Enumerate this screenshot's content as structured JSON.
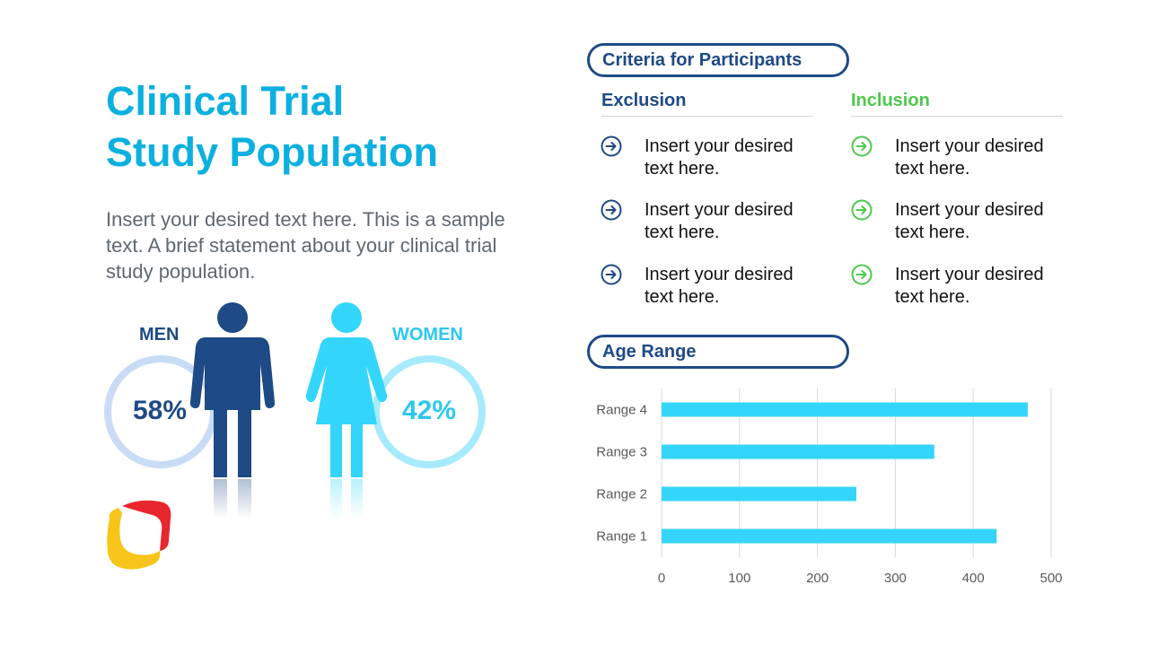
{
  "title": {
    "line1": "Clinical Trial",
    "line2": "Study Population"
  },
  "description": "Insert your desired text here. This is a sample text. A brief statement about your clinical trial study population.",
  "men": {
    "label": "MEN",
    "percent": "58%",
    "color": "#1e4a86"
  },
  "women": {
    "label": "WOMEN",
    "percent": "42%",
    "color": "#2bc8ee"
  },
  "criteria": {
    "heading": "Criteria  for Participants",
    "exclusion": {
      "heading": "Exclusion",
      "items": [
        "Insert your desired text here.",
        "Insert your desired text here.",
        "Insert your desired text here."
      ],
      "icon": "arrow-circle-right-icon",
      "color": "#1e4a86"
    },
    "inclusion": {
      "heading": "Inclusion",
      "items": [
        "Insert your desired text here.",
        "Insert your desired text here.",
        "Insert your desired text here."
      ],
      "icon": "arrow-circle-right-icon",
      "color": "#4cc94c"
    }
  },
  "age_range": {
    "heading": "Age Range"
  },
  "chart_data": {
    "type": "bar",
    "orientation": "horizontal",
    "categories": [
      "Range 4",
      "Range 3",
      "Range 2",
      "Range 1"
    ],
    "values": [
      470,
      350,
      250,
      430
    ],
    "xlim": [
      0,
      500
    ],
    "xticks": [
      0,
      100,
      200,
      300,
      400,
      500
    ],
    "grid": true,
    "bar_color": "#33d6fa"
  }
}
